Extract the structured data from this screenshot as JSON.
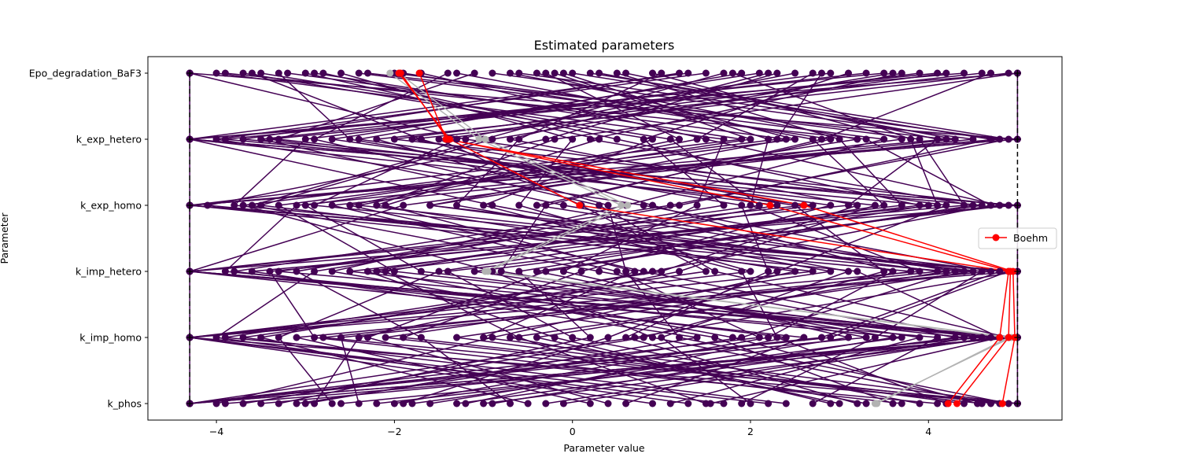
{
  "chart_data": {
    "type": "line",
    "title": "Estimated parameters",
    "xlabel": "Parameter value",
    "ylabel": "Parameter",
    "parameters": [
      "Epo_degradation_BaF3",
      "k_exp_hetero",
      "k_exp_homo",
      "k_imp_hetero",
      "k_imp_homo",
      "k_phos"
    ],
    "xlim": [
      -4.77,
      5.5
    ],
    "xticks": [
      -4,
      -2,
      0,
      2,
      4
    ],
    "bounds": {
      "lower": -4.3,
      "upper": 5.0
    },
    "grid": false,
    "legend": {
      "position": "center-right",
      "entries": [
        "Boehm"
      ]
    },
    "colors": {
      "starts": "#440154",
      "reference": "#ff0000",
      "grey": "#b3b3b3",
      "bounds": "#000000"
    },
    "series": [
      {
        "name": "Boehm",
        "values": [
          -1.95,
          -1.38,
          0.08,
          4.9,
          4.8,
          4.22
        ]
      },
      {
        "name": "Boehm",
        "values": [
          -1.93,
          -1.4,
          2.22,
          4.92,
          4.9,
          4.32
        ]
      },
      {
        "name": "Boehm",
        "values": [
          -1.72,
          -1.42,
          2.6,
          4.95,
          4.97,
          4.83
        ]
      },
      {
        "values": [
          -1.95,
          -0.98,
          0.62,
          -0.95,
          4.93,
          3.4
        ]
      },
      {
        "values": [
          -2.05,
          -1.05,
          0.55,
          -0.98,
          4.9,
          3.42
        ]
      },
      {
        "values": [
          -4.3,
          -4.3,
          -4.3,
          -4.3,
          -4.3,
          -4.3
        ]
      },
      {
        "values": [
          -4.3,
          5.0,
          -4.3,
          5.0,
          -4.3,
          5.0
        ]
      },
      {
        "values": [
          5.0,
          -4.3,
          5.0,
          -4.3,
          5.0,
          -4.3
        ]
      },
      {
        "values": [
          -4.3,
          -4.3,
          5.0,
          5.0,
          5.0,
          -4.3
        ]
      },
      {
        "values": [
          5.0,
          5.0,
          -4.3,
          -4.3,
          5.0,
          5.0
        ]
      },
      {
        "values": [
          -0.6,
          4.8,
          -4.3,
          5.0,
          0.7,
          -4.3
        ]
      },
      {
        "values": [
          4.9,
          -1.8,
          2.6,
          -4.3,
          4.8,
          1.55
        ]
      },
      {
        "values": [
          -3.2,
          2.4,
          -1.6,
          4.1,
          -2.8,
          5.0
        ]
      },
      {
        "values": [
          1.2,
          -3.7,
          4.6,
          -0.4,
          3.3,
          -4.3
        ]
      },
      {
        "values": [
          -2.8,
          0.5,
          3.9,
          -2.2,
          1.8,
          4.55
        ]
      },
      {
        "values": [
          3.6,
          -0.9,
          -3.5,
          2.7,
          -4.3,
          0.9
        ]
      },
      {
        "values": [
          0.2,
          4.9,
          1.1,
          -3.8,
          2.4,
          -1.2
        ]
      },
      {
        "values": [
          -1.4,
          -2.9,
          0.3,
          1.6,
          4.9,
          -2.6
        ]
      },
      {
        "values": [
          2.7,
          1.4,
          -2.4,
          4.5,
          -0.7,
          3.3
        ]
      },
      {
        "values": [
          -3.9,
          3.3,
          4.7,
          0.9,
          -3.5,
          -0.5
        ]
      },
      {
        "values": [
          4.4,
          -4.3,
          -0.9,
          3.1,
          1.0,
          2.0
        ]
      },
      {
        "values": [
          -0.2,
          2.0,
          -3.0,
          -1.7,
          4.6,
          -3.5
        ]
      },
      {
        "values": [
          1.9,
          -2.4,
          2.9,
          0.1,
          -1.9,
          4.8
        ]
      },
      {
        "values": [
          -2.3,
          4.2,
          -4.3,
          4.9,
          2.9,
          -4.3
        ]
      },
      {
        "values": [
          3.1,
          0.8,
          1.7,
          -2.9,
          -4.0,
          1.3
        ]
      },
      {
        "values": [
          -4.3,
          -1.2,
          4.2,
          2.3,
          0.4,
          -1.9
        ]
      },
      {
        "values": [
          0.9,
          3.7,
          -1.9,
          -4.3,
          4.1,
          2.7
        ]
      },
      {
        "values": [
          -1.1,
          -3.3,
          3.4,
          1.2,
          -2.4,
          -2.9
        ]
      },
      {
        "values": [
          4.7,
          2.8,
          -0.3,
          -0.8,
          3.6,
          -0.9
        ]
      },
      {
        "values": [
          2.3,
          -0.3,
          -4.1,
          3.8,
          -1.3,
          4.4
        ]
      },
      {
        "values": [
          -3.5,
          1.1,
          2.1,
          -3.3,
          5.0,
          -3.9
        ]
      },
      {
        "values": [
          1.5,
          -4.0,
          0.8,
          4.7,
          -3.1,
          0.2
        ]
      },
      {
        "values": [
          -0.9,
          4.5,
          -2.7,
          0.5,
          2.1,
          -4.3
        ]
      },
      {
        "values": [
          3.9,
          -2.0,
          4.9,
          -1.4,
          0.0,
          3.9
        ]
      },
      {
        "values": [
          -2.6,
          0.0,
          -0.6,
          2.0,
          -4.3,
          1.7
        ]
      },
      {
        "values": [
          0.5,
          3.0,
          3.7,
          -2.5,
          4.4,
          -2.2
        ]
      },
      {
        "values": [
          2.9,
          -3.0,
          -3.8,
          4.2,
          -0.4,
          3.0
        ]
      },
      {
        "values": [
          -4.0,
          1.7,
          1.4,
          -0.1,
          3.1,
          -1.6
        ]
      },
      {
        "values": [
          1.0,
          -0.6,
          -1.3,
          2.9,
          -2.1,
          4.6
        ]
      },
      {
        "values": [
          -2.0,
          3.9,
          4.4,
          -3.6,
          1.4,
          -3.0
        ]
      },
      {
        "values": [
          4.2,
          -1.5,
          0.1,
          1.5,
          -3.7,
          2.4
        ]
      },
      {
        "values": [
          -0.4,
          2.5,
          -3.3,
          -2.0,
          4.7,
          -0.1
        ]
      },
      {
        "values": [
          2.1,
          -2.7,
          2.5,
          3.5,
          0.8,
          -3.7
        ]
      },
      {
        "values": [
          -3.0,
          0.3,
          -2.1,
          0.7,
          -1.0,
          5.0
        ]
      },
      {
        "values": [
          0.6,
          4.1,
          3.1,
          -4.3,
          2.6,
          0.6
        ]
      },
      {
        "values": [
          3.3,
          -3.5,
          -0.1,
          4.4,
          -2.6,
          -2.4
        ]
      },
      {
        "values": [
          -1.7,
          1.5,
          4.8,
          -1.1,
          3.9,
          1.1
        ]
      },
      {
        "values": [
          5.0,
          -0.2,
          -2.2,
          2.5,
          -0.9,
          -4.0
        ]
      },
      {
        "values": [
          -2.4,
          3.5,
          0.6,
          -2.7,
          1.6,
          3.6
        ]
      },
      {
        "values": [
          1.7,
          -1.0,
          -3.6,
          0.3,
          4.3,
          -1.3
        ]
      },
      {
        "values": [
          -0.1,
          2.2,
          2.0,
          3.9,
          -4.3,
          2.2
        ]
      },
      {
        "values": [
          3.5,
          -3.9,
          4.0,
          -0.6,
          0.2,
          -3.3
        ]
      },
      {
        "values": [
          -3.7,
          0.9,
          -1.0,
          1.9,
          2.3,
          4.2
        ]
      },
      {
        "values": [
          0.0,
          4.7,
          1.2,
          -3.1,
          -1.7,
          -0.7
        ]
      },
      {
        "values": [
          2.5,
          -1.3,
          -2.9,
          4.6,
          3.4,
          1.9
        ]
      },
      {
        "values": [
          -1.3,
          2.7,
          3.5,
          -1.5,
          -3.3,
          -2.7
        ]
      },
      {
        "values": [
          4.6,
          -2.2,
          0.4,
          0.6,
          1.2,
          4.9
        ]
      },
      {
        "values": [
          -2.9,
          1.9,
          -4.3,
          3.2,
          4.8,
          -1.0
        ]
      },
      {
        "values": [
          1.3,
          -4.3,
          2.7,
          -2.3,
          -0.2,
          2.9
        ]
      },
      {
        "values": [
          -0.7,
          3.2,
          -1.6,
          4.8,
          2.8,
          -4.3
        ]
      },
      {
        "values": [
          3.7,
          0.2,
          4.5,
          -0.3,
          -2.3,
          0.4
        ]
      },
      {
        "values": [
          -3.3,
          -2.5,
          1.9,
          2.2,
          0.6,
          3.2
        ]
      },
      {
        "values": [
          0.3,
          4.3,
          -3.1,
          -3.9,
          3.7,
          -1.8
        ]
      },
      {
        "values": [
          2.2,
          -0.7,
          3.2,
          1.0,
          -3.9,
          4.1
        ]
      },
      {
        "values": [
          -1.9,
          2.9,
          -0.4,
          4.3,
          1.9,
          -3.1
        ]
      },
      {
        "values": [
          4.1,
          -3.4,
          2.3,
          -2.1,
          -0.6,
          1.5
        ]
      },
      {
        "values": [
          -0.3,
          1.2,
          -2.5,
          0.8,
          4.5,
          -0.3
        ]
      },
      {
        "values": [
          1.8,
          3.8,
          4.1,
          -3.4,
          -2.9,
          3.7
        ]
      },
      {
        "values": [
          -3.6,
          -1.7,
          0.9,
          3.6,
          2.2,
          -2.0
        ]
      },
      {
        "values": [
          2.8,
          2.3,
          -3.7,
          -0.9,
          0.9,
          4.7
        ]
      }
    ]
  }
}
